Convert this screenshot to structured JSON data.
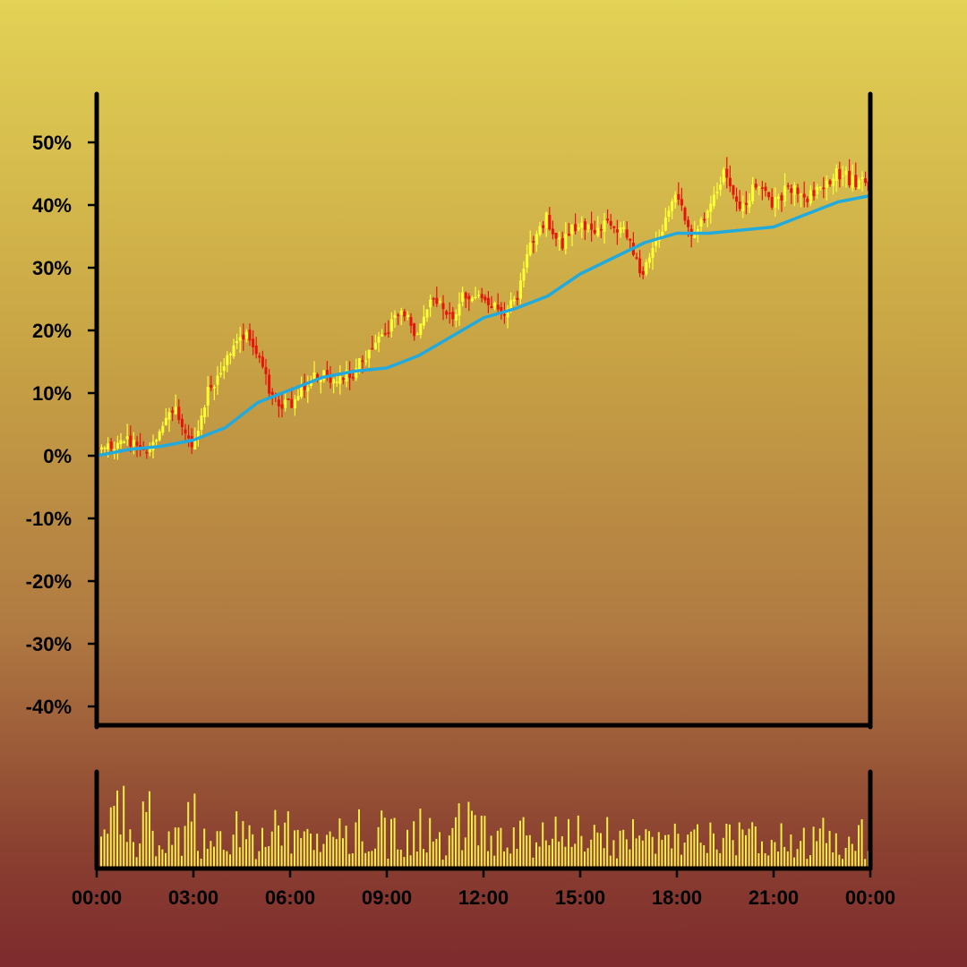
{
  "chart_data": {
    "type": "candlestick",
    "price_panel": {
      "y_unit": "percent",
      "ylim": [
        -40,
        55
      ],
      "y_ticks": [
        50,
        40,
        30,
        20,
        10,
        0,
        -10,
        -20,
        -30,
        -40
      ],
      "y_tick_labels": [
        "50%",
        "40%",
        "30%",
        "20%",
        "10%",
        "0%",
        "-10%",
        "-20%",
        "-30%",
        "-40%"
      ],
      "up_color": "#ffff33",
      "down_color": "#e8140c",
      "moving_average_color": "#22aadd",
      "price_path": {
        "hours": [
          0,
          0.5,
          1,
          1.5,
          2,
          2.5,
          3,
          3.5,
          4,
          4.5,
          5,
          5.5,
          6,
          6.5,
          7,
          7.5,
          8,
          8.5,
          9,
          9.5,
          10,
          10.5,
          11,
          11.5,
          12,
          12.5,
          13,
          13.5,
          14,
          14.5,
          15,
          15.5,
          16,
          16.5,
          17,
          17.5,
          18,
          18.5,
          19,
          19.5,
          20,
          20.5,
          21,
          21.5,
          22,
          22.5,
          23,
          23.5,
          24
        ],
        "close_pct": [
          1,
          1,
          3,
          0,
          3,
          8,
          1,
          10,
          15,
          20,
          17,
          9,
          8,
          11,
          13,
          12,
          13,
          17,
          20,
          23,
          19,
          25,
          22,
          26,
          25,
          23,
          24,
          33,
          38,
          34,
          37,
          36,
          37,
          35,
          29,
          35,
          41,
          36,
          38,
          45,
          39,
          43,
          40,
          43,
          41,
          43,
          45,
          44,
          43
        ]
      },
      "moving_average_pct": {
        "hours": [
          0,
          1,
          2,
          3,
          4,
          5,
          6,
          7,
          8,
          9,
          10,
          11,
          12,
          13,
          14,
          15,
          16,
          17,
          18,
          18.5,
          19,
          20,
          21,
          22,
          23,
          24
        ],
        "values": [
          0,
          1,
          1.5,
          2.5,
          4.5,
          8.5,
          10.5,
          12.5,
          13.5,
          14,
          16,
          19,
          22,
          23.5,
          25.5,
          29,
          31.5,
          34,
          35.5,
          35.5,
          35.5,
          36,
          36.5,
          38.5,
          40.5,
          41.5
        ]
      }
    },
    "volume_panel": {
      "bar_color": "#f6ee46",
      "relative_volume_range": [
        0.05,
        1.0
      ]
    },
    "x_axis": {
      "range_hours": [
        0,
        24
      ],
      "tick_hours": [
        0,
        3,
        6,
        9,
        12,
        15,
        18,
        21,
        24
      ],
      "tick_labels": [
        "00:00",
        "03:00",
        "06:00",
        "09:00",
        "12:00",
        "15:00",
        "18:00",
        "21:00",
        "00:00"
      ]
    },
    "bar_interval_minutes": 6,
    "grid": false,
    "legend": "none"
  }
}
